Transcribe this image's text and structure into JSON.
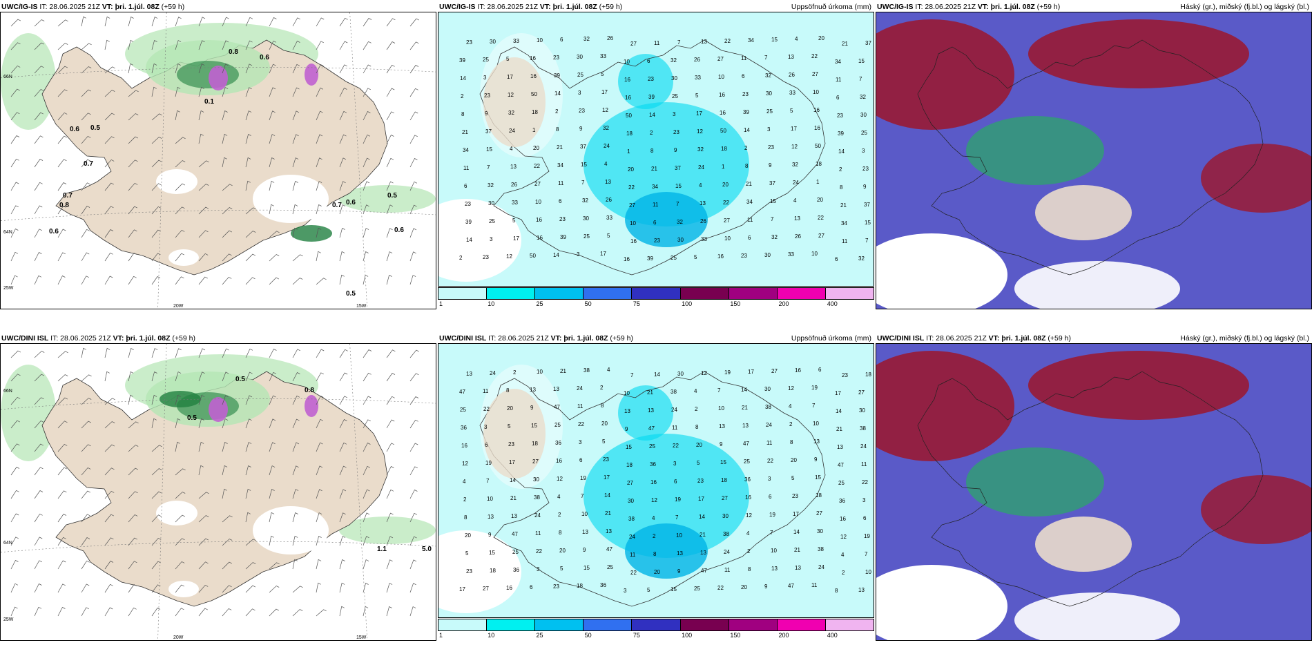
{
  "panels": [
    {
      "model": "UWC/IG-IS",
      "it_label": "IT:",
      "it": "28.06.2025 21Z",
      "vt_label": "VT:",
      "vt": "þri. 1.júl. 08Z",
      "lead": "(+59 h)",
      "right": ""
    },
    {
      "model": "UWC/IG-IS",
      "it_label": "IT:",
      "it": "28.06.2025 21Z",
      "vt_label": "VT:",
      "vt": "þri. 1.júl. 08Z",
      "lead": "(+59 h)",
      "right": "Uppsöfnuð úrkoma (mm)"
    },
    {
      "model": "UWC/IG-IS",
      "it_label": "IT:",
      "it": "28.06.2025 21Z",
      "vt_label": "VT:",
      "vt": "þri. 1.júl. 08Z",
      "lead": "(+59 h)",
      "right": "Háský (gr.), miðský (fj.bl.) og lágský (bl.)"
    },
    {
      "model": "UWC/DINI ISL",
      "it_label": "IT:",
      "it": "28.06.2025 21Z",
      "vt_label": "VT:",
      "vt": "þri. 1.júl. 08Z",
      "lead": "(+59 h)",
      "right": ""
    },
    {
      "model": "UWC/DINI ISL",
      "it_label": "IT:",
      "it": "28.06.2025 21Z",
      "vt_label": "VT:",
      "vt": "þri. 1.júl. 08Z",
      "lead": "(+59 h)",
      "right": "Uppsöfnuð úrkoma (mm)"
    },
    {
      "model": "UWC/DINI ISL",
      "it_label": "IT:",
      "it": "28.06.2025 21Z",
      "vt_label": "VT:",
      "vt": "þri. 1.júl. 08Z",
      "lead": "(+59 h)",
      "right": "Háský (gr.), miðský (fj.bl.) og lágský (bl.)"
    }
  ],
  "axes": {
    "lat_66": "66N",
    "lat_64": "64N",
    "lon_25": "25W",
    "lon_20": "20W",
    "lon_15": "15W"
  },
  "colorbar": {
    "labels": [
      "1",
      "10",
      "25",
      "50",
      "75",
      "100",
      "150",
      "200",
      "400"
    ],
    "colors": [
      "#c8fafa",
      "#00f0f0",
      "#00c0f0",
      "#3070f0",
      "#3030c0",
      "#780050",
      "#a00080",
      "#f000b0",
      "#f0b4f0"
    ]
  },
  "colors": {
    "land": "#eadccb",
    "sea_precip": "#c8fafa",
    "precip_mid": "#00d8f0",
    "green_light": "#b4e6b4",
    "green_dark": "#208040",
    "cloud_blue": "#5a5ac8",
    "cloud_red": "#961e3c",
    "cloud_green": "#30a070"
  },
  "labels_left_top": [
    "0.8",
    "0.6",
    "0.6",
    "0.5",
    "0.7",
    "0.7",
    "0.8",
    "0.6",
    "0.1",
    "0.5",
    "0.7",
    "0.6",
    "0.6",
    "0.5"
  ],
  "labels_left_bottom": [
    "0.5",
    "0.8",
    "0.5",
    "1.1",
    "5.0"
  ],
  "labels_precip_top": [
    "8",
    "20",
    "13",
    "32",
    "23",
    "16",
    "12",
    "9",
    "21",
    "22",
    "26",
    "30",
    "39",
    "50",
    "32",
    "37",
    "34",
    "27",
    "33",
    "25",
    "14",
    "18",
    "24",
    "15",
    "11",
    "10",
    "5",
    "3",
    "2",
    "1",
    "4",
    "7",
    "6",
    "16",
    "17",
    "23"
  ],
  "labels_precip_bottom": [
    "5",
    "10",
    "23",
    "13",
    "17",
    "9",
    "14",
    "15",
    "21",
    "18",
    "13",
    "27",
    "47",
    "30",
    "25",
    "38",
    "36",
    "24",
    "16",
    "11",
    "12",
    "22",
    "4",
    "3",
    "2",
    "6",
    "8",
    "19",
    "20",
    "7"
  ]
}
